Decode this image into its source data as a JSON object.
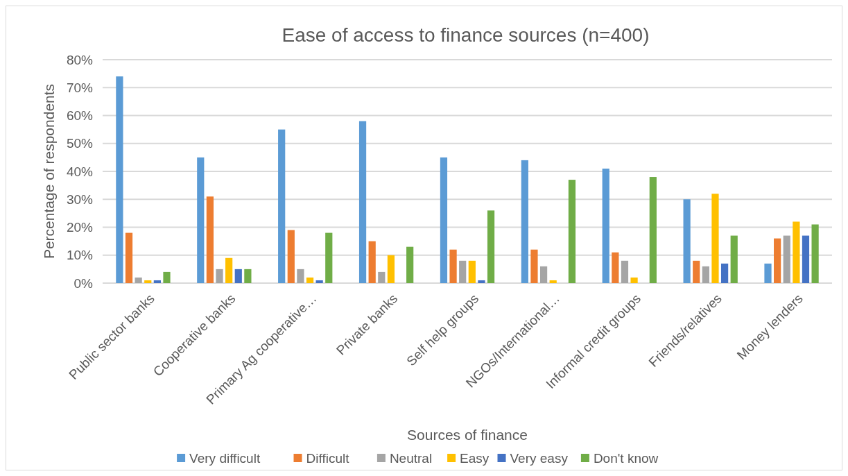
{
  "chart_data": {
    "type": "bar",
    "title": "Ease of access to finance sources (n=400)",
    "xlabel": "Sources of finance",
    "ylabel": "Percentage of respondents",
    "categories": [
      "Public sector banks",
      "Cooperative banks",
      "Primary Ag cooperative…",
      "Private banks",
      "Self help groups",
      "NGOs/International…",
      "Informal credit groups",
      "Friends/relatives",
      "Money lenders"
    ],
    "series": [
      {
        "name": "Very difficult",
        "color": "#5b9bd5",
        "values": [
          74,
          45,
          55,
          58,
          45,
          44,
          41,
          30,
          7
        ]
      },
      {
        "name": "Difficult",
        "color": "#ed7d31",
        "values": [
          18,
          31,
          19,
          15,
          12,
          12,
          11,
          8,
          16
        ]
      },
      {
        "name": "Neutral",
        "color": "#a5a5a5",
        "values": [
          2,
          5,
          5,
          4,
          8,
          6,
          8,
          6,
          17
        ]
      },
      {
        "name": "Easy",
        "color": "#ffc000",
        "values": [
          1,
          9,
          2,
          10,
          8,
          1,
          2,
          32,
          22
        ]
      },
      {
        "name": "Very easy",
        "color": "#4472c4",
        "values": [
          1,
          5,
          1,
          null,
          1,
          null,
          null,
          7,
          17
        ]
      },
      {
        "name": "Don't know",
        "color": "#70ad47",
        "values": [
          4,
          5,
          18,
          13,
          26,
          37,
          38,
          17,
          21
        ]
      }
    ],
    "ylim": [
      0,
      80
    ],
    "yticks": [
      {
        "value": 0,
        "label": "0%"
      },
      {
        "value": 10,
        "label": "10%"
      },
      {
        "value": 20,
        "label": "20%"
      },
      {
        "value": 30,
        "label": "30%"
      },
      {
        "value": 40,
        "label": "40%"
      },
      {
        "value": 50,
        "label": "50%"
      },
      {
        "value": 60,
        "label": "60%"
      },
      {
        "value": 70,
        "label": "70%"
      },
      {
        "value": 80,
        "label": "80%"
      }
    ],
    "grid": "y",
    "legend": "bottom"
  }
}
